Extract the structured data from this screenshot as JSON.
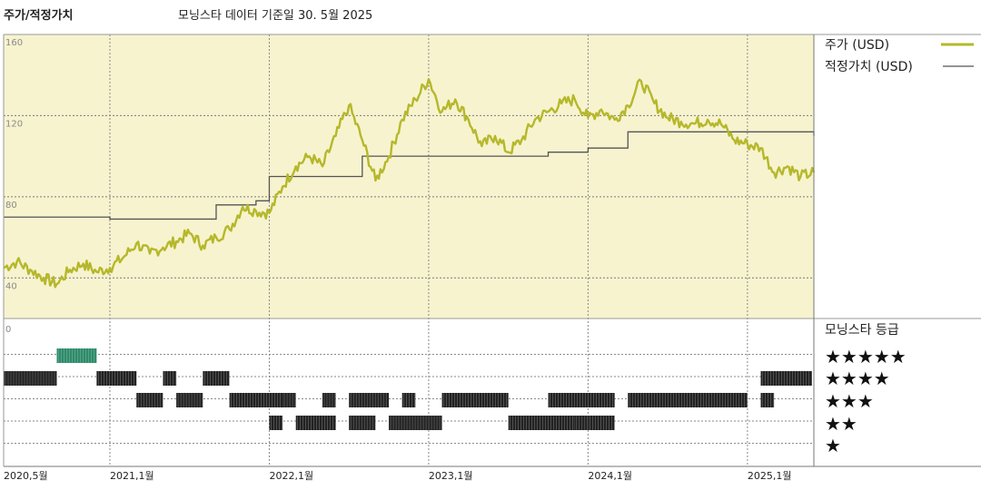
{
  "header": {
    "title": "주가/적정가치",
    "subtitle": "모닝스타 데이터 기준일 30. 5월 2025"
  },
  "legend": {
    "price_label": "주가 (USD)",
    "fair_value_label": "적정가치 (USD)"
  },
  "rating_panel": {
    "title": "모닝스타 등급",
    "rows": [
      "★★★★★",
      "★★★★",
      "★★★",
      "★★",
      "★"
    ]
  },
  "colors": {
    "price": "#b5b82a",
    "fair_value": "#555555",
    "upper_background": "#f7f3cf",
    "five_star": "#2e8b6a",
    "rating_bar": "#222222"
  },
  "chart_data": [
    {
      "type": "line",
      "title": "",
      "x_ticks": [
        "2020,5월",
        "2021,1월",
        "2022,1월",
        "2023,1월",
        "2024,1월",
        "2025,1월"
      ],
      "y_ticks": [
        40,
        80,
        120,
        160
      ],
      "ylim": [
        20,
        160
      ],
      "xlim": [
        "2020-05",
        "2025-06"
      ],
      "grid": true,
      "legend_position": "right",
      "series": [
        {
          "name": "주가 (USD)",
          "points": [
            [
              "2020-05",
              45
            ],
            [
              "2020-06",
              48
            ],
            [
              "2020-07",
              44
            ],
            [
              "2020-08",
              40
            ],
            [
              "2020-09",
              37
            ],
            [
              "2020-10",
              44
            ],
            [
              "2020-11",
              47
            ],
            [
              "2020-12",
              43
            ],
            [
              "2021-01",
              45
            ],
            [
              "2021-02",
              50
            ],
            [
              "2021-03",
              57
            ],
            [
              "2021-04",
              52
            ],
            [
              "2021-05",
              55
            ],
            [
              "2021-06",
              58
            ],
            [
              "2021-07",
              62
            ],
            [
              "2021-08",
              56
            ],
            [
              "2021-09",
              60
            ],
            [
              "2021-10",
              64
            ],
            [
              "2021-11",
              75
            ],
            [
              "2021-12",
              73
            ],
            [
              "2022-01",
              72
            ],
            [
              "2022-02",
              85
            ],
            [
              "2022-03",
              95
            ],
            [
              "2022-04",
              100
            ],
            [
              "2022-05",
              95
            ],
            [
              "2022-06",
              110
            ],
            [
              "2022-07",
              125
            ],
            [
              "2022-08",
              108
            ],
            [
              "2022-09",
              88
            ],
            [
              "2022-10",
              100
            ],
            [
              "2022-11",
              118
            ],
            [
              "2022-12",
              128
            ],
            [
              "2023-01",
              138
            ],
            [
              "2023-02",
              122
            ],
            [
              "2023-03",
              128
            ],
            [
              "2023-04",
              118
            ],
            [
              "2023-05",
              105
            ],
            [
              "2023-06",
              110
            ],
            [
              "2023-07",
              102
            ],
            [
              "2023-08",
              108
            ],
            [
              "2023-09",
              118
            ],
            [
              "2023-10",
              122
            ],
            [
              "2023-11",
              126
            ],
            [
              "2023-12",
              128
            ],
            [
              "2024-01",
              119
            ],
            [
              "2024-02",
              123
            ],
            [
              "2024-03",
              118
            ],
            [
              "2024-04",
              125
            ],
            [
              "2024-05",
              137
            ],
            [
              "2024-06",
              126
            ],
            [
              "2024-07",
              119
            ],
            [
              "2024-08",
              117
            ],
            [
              "2024-09",
              116
            ],
            [
              "2024-10",
              118
            ],
            [
              "2024-11",
              116
            ],
            [
              "2024-12",
              108
            ],
            [
              "2025-01",
              106
            ],
            [
              "2025-02",
              104
            ],
            [
              "2025-03",
              92
            ],
            [
              "2025-04",
              95
            ],
            [
              "2025-05",
              90
            ],
            [
              "2025-06",
              92
            ]
          ]
        },
        {
          "name": "적정가치 (USD)",
          "steps": [
            [
              "2020-05",
              70
            ],
            [
              "2021-01",
              69
            ],
            [
              "2021-09",
              76
            ],
            [
              "2021-12",
              78
            ],
            [
              "2022-01",
              90
            ],
            [
              "2022-08",
              100
            ],
            [
              "2023-10",
              102
            ],
            [
              "2024-01",
              104
            ],
            [
              "2024-04",
              112
            ],
            [
              "2025-06",
              110
            ]
          ]
        }
      ]
    },
    {
      "type": "bar",
      "title": "모닝스타 등급",
      "categories": [
        "★★★★★",
        "★★★★",
        "★★★",
        "★★",
        "★"
      ],
      "series": [
        {
          "name": "★★★★★",
          "periods": [
            [
              "2020-09",
              "2020-12"
            ]
          ]
        },
        {
          "name": "★★★★",
          "periods": [
            [
              "2020-05",
              "2020-09"
            ],
            [
              "2020-12",
              "2021-03"
            ],
            [
              "2021-05",
              "2021-06"
            ],
            [
              "2021-08",
              "2021-10"
            ],
            [
              "2025-02",
              "2025-06"
            ]
          ]
        },
        {
          "name": "★★★",
          "periods": [
            [
              "2021-03",
              "2021-05"
            ],
            [
              "2021-06",
              "2021-08"
            ],
            [
              "2021-10",
              "2022-02"
            ],
            [
              "2022-02",
              "2022-03"
            ],
            [
              "2022-05",
              "2022-06"
            ],
            [
              "2022-07",
              "2022-10"
            ],
            [
              "2022-11",
              "2022-12"
            ],
            [
              "2023-02",
              "2023-07"
            ],
            [
              "2023-10",
              "2024-03"
            ],
            [
              "2024-04",
              "2025-01"
            ],
            [
              "2025-02",
              "2025-03"
            ]
          ]
        },
        {
          "name": "★★",
          "periods": [
            [
              "2022-01",
              "2022-02"
            ],
            [
              "2022-03",
              "2022-06"
            ],
            [
              "2022-07",
              "2022-09"
            ],
            [
              "2022-10",
              "2023-02"
            ],
            [
              "2023-07",
              "2023-12"
            ],
            [
              "2023-12",
              "2024-01"
            ],
            [
              "2024-01",
              "2024-03"
            ]
          ]
        },
        {
          "name": "★",
          "periods": []
        }
      ]
    }
  ]
}
